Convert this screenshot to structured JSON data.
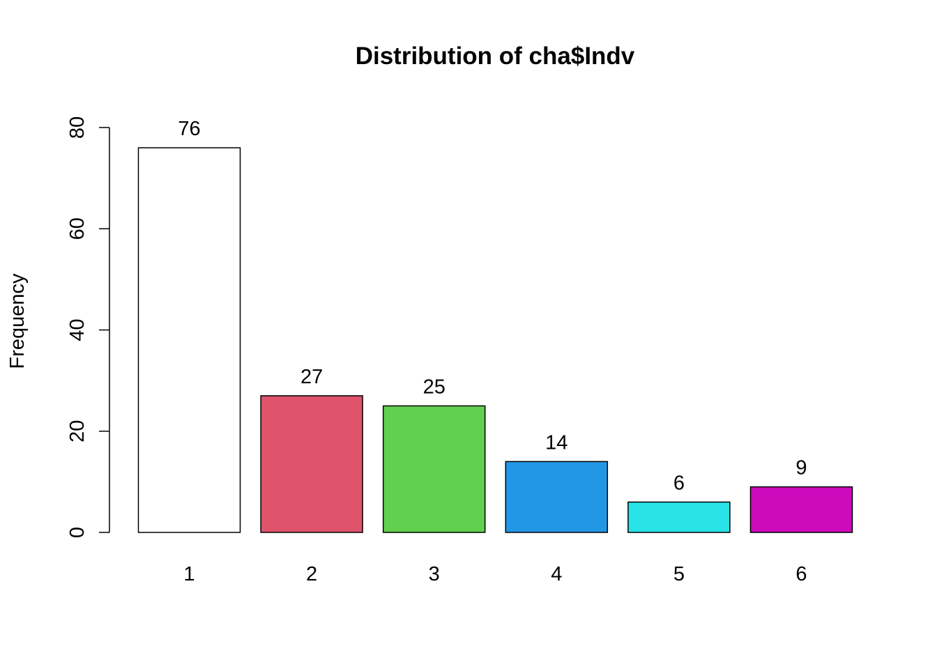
{
  "chart_data": {
    "type": "bar",
    "title": "Distribution of cha$Indv",
    "xlabel": "",
    "ylabel": "Frequency",
    "categories": [
      "1",
      "2",
      "3",
      "4",
      "5",
      "6"
    ],
    "values": [
      76,
      27,
      25,
      14,
      6,
      9
    ],
    "data_labels": [
      "76",
      "27",
      "25",
      "14",
      "6",
      "9"
    ],
    "colors": [
      "#FFFFFF",
      "#DF536B",
      "#61D04F",
      "#2297E6",
      "#28E2E5",
      "#CD0BBC"
    ],
    "ylim": [
      0,
      80
    ],
    "yticks": [
      0,
      20,
      40,
      60,
      80
    ],
    "ytick_labels": [
      "0",
      "20",
      "40",
      "60",
      "80"
    ],
    "grid": false,
    "legend": "none"
  }
}
